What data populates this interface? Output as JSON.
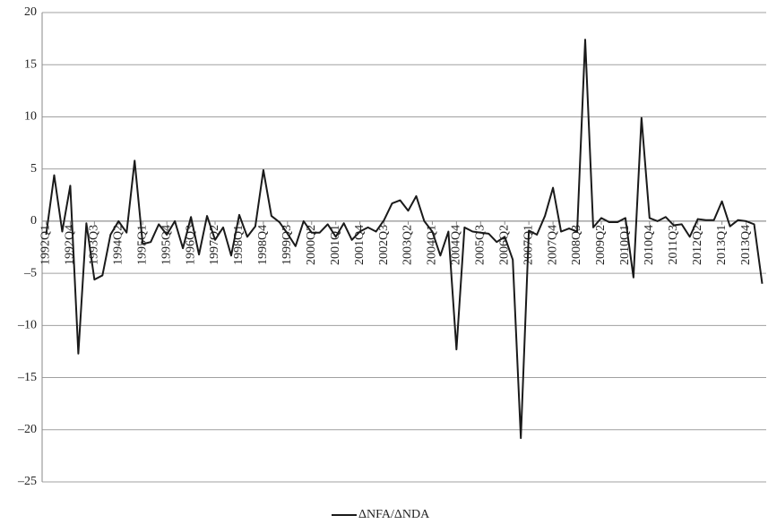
{
  "chart_data": {
    "type": "line",
    "categories": [
      "1992Q1",
      null,
      null,
      "1992Q4",
      null,
      null,
      "1993Q3",
      null,
      null,
      "1994Q2",
      null,
      null,
      "1995Q1",
      null,
      null,
      "1995Q4",
      null,
      null,
      "1996Q3",
      null,
      null,
      "1997Q2",
      null,
      null,
      "1998Q1",
      null,
      null,
      "1998Q4",
      null,
      null,
      "1999Q3",
      null,
      null,
      "2000Q2",
      null,
      null,
      "2001Q1",
      null,
      null,
      "2001Q4",
      null,
      null,
      "2002Q3",
      null,
      null,
      "2003Q2",
      null,
      null,
      "2004Q1",
      null,
      null,
      "2004Q4",
      null,
      null,
      "2005Q3",
      null,
      null,
      "2006Q2",
      null,
      null,
      "2007Q1",
      null,
      null,
      "2007Q4",
      null,
      null,
      "2008Q3",
      null,
      null,
      "2009Q2",
      null,
      null,
      "2010Q1",
      null,
      null,
      "2010Q4",
      null,
      null,
      "2011Q3",
      null,
      null,
      "2012Q2",
      null,
      null,
      "2013Q1",
      null,
      null,
      "2013Q4",
      null,
      null
    ],
    "series": [
      {
        "name": "ΔNFA/ΔNDA",
        "color": "#1a1a1a",
        "values": [
          -1.3,
          4.4,
          -1,
          3.4,
          -12.7,
          -0.2,
          -5.6,
          -5.2,
          -1.3,
          0,
          -1.1,
          5.8,
          -2.2,
          -2.0,
          -0.3,
          -1.3,
          0,
          -2.6,
          0.4,
          -3.2,
          0.5,
          -1.8,
          -0.6,
          -3.3,
          0.6,
          -1.5,
          -0.5,
          4.9,
          0.5,
          -0.1,
          -1.2,
          -2.4,
          0,
          -1.1,
          -1.1,
          -0.3,
          -1.5,
          -0.2,
          -1.8,
          -1.0,
          -0.6,
          -1.0,
          0.1,
          1.7,
          2.0,
          1.0,
          2.4,
          0,
          -1.0,
          -3.3,
          -1.0,
          -12.3,
          -0.6,
          -1.0,
          -1.1,
          -1.2,
          -2.0,
          -1.5,
          -3.7,
          -20.8,
          -0.9,
          -1.3,
          0.5,
          3.2,
          -1.0,
          -0.7,
          -1.0,
          17.4,
          -0.6,
          0.3,
          -0.1,
          -0.1,
          0.3,
          -5.4,
          9.9,
          0.3,
          0,
          0.4,
          -0.4,
          -0.3,
          -1.5,
          0.2,
          0.1,
          0.1,
          1.9,
          -0.5,
          0.1,
          0,
          -0.3,
          -6.0
        ]
      }
    ],
    "ylim": [
      -25,
      20
    ],
    "yticks": [
      {
        "value": -25,
        "label": "–25"
      },
      {
        "value": -20,
        "label": "–20"
      },
      {
        "value": -15,
        "label": "–15"
      },
      {
        "value": -10,
        "label": "–10"
      },
      {
        "value": -5,
        "label": "–5"
      },
      0,
      5,
      10,
      15,
      20
    ],
    "grid": true,
    "legend": "bottom"
  }
}
